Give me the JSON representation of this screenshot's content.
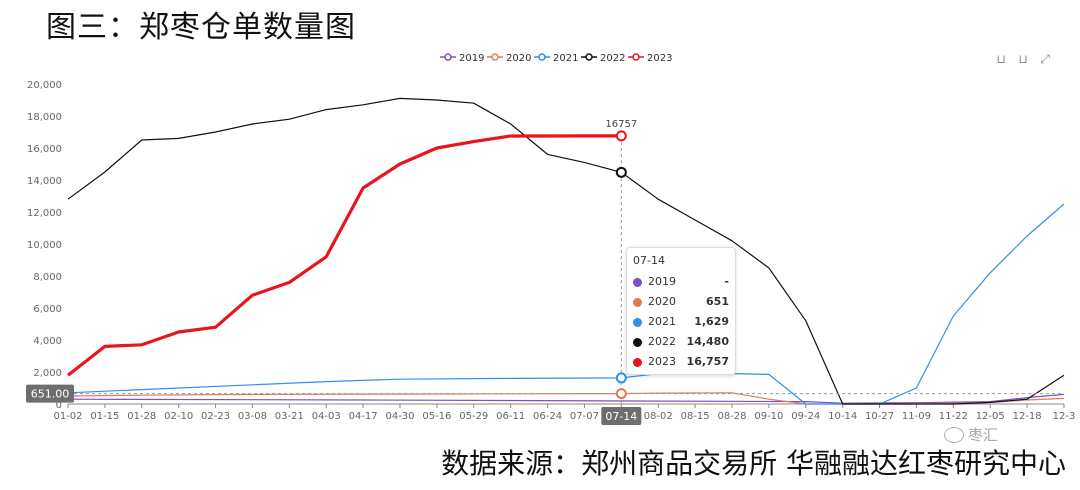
{
  "heading": "图三：郑枣仓单数量图",
  "footer": "数据来源：郑州商品交易所 华融融达红枣研究中心",
  "watermark": "枣汇",
  "toolbox": [
    {
      "name": "zoom-tool",
      "glyph": "⊔"
    },
    {
      "name": "zoom-reset-tool",
      "glyph": "⊔"
    },
    {
      "name": "fullscreen-tool",
      "glyph": "⤢"
    }
  ],
  "tooltip": {
    "title": "07-14",
    "rows": [
      {
        "year": "2019",
        "value": "-",
        "color": "#7f4fc4"
      },
      {
        "year": "2020",
        "value": "651",
        "color": "#e07b54"
      },
      {
        "year": "2021",
        "value": "1,629",
        "color": "#2e90f0"
      },
      {
        "year": "2022",
        "value": "14,480",
        "color": "#111111"
      },
      {
        "year": "2023",
        "value": "16,757",
        "color": "#e8161b"
      }
    ]
  },
  "chart_data": {
    "type": "line",
    "title": "",
    "xlabel": "",
    "ylabel": "",
    "ylim": [
      0,
      20000
    ],
    "yticks": [
      0,
      2000,
      4000,
      6000,
      8000,
      10000,
      12000,
      14000,
      16000,
      18000,
      20000
    ],
    "ytick_labels": [
      "0",
      "2,000",
      "4,000",
      "6,000",
      "8,000",
      "10,000",
      "12,000",
      "14,000",
      "16,000",
      "18,000",
      "20,000"
    ],
    "x_categories": [
      "01-02",
      "01-15",
      "01-28",
      "02-10",
      "02-23",
      "03-08",
      "03-21",
      "04-03",
      "04-17",
      "04-30",
      "05-16",
      "05-29",
      "06-11",
      "06-24",
      "07-07",
      "07-14",
      "08-02",
      "08-15",
      "08-28",
      "09-10",
      "09-24",
      "10-14",
      "10-27",
      "11-09",
      "11-22",
      "12-05",
      "12-18",
      "12-3"
    ],
    "pointer": {
      "x": "07-14",
      "y_label": "651.00",
      "y": 651,
      "peak_label": "16757"
    },
    "legend": {
      "placement": "top-center"
    },
    "grid": false,
    "series": [
      {
        "name": "2019",
        "color": "#7f4fc4",
        "x": [
          "01-02",
          "04-17",
          "09-24",
          "10-14",
          "11-09",
          "12-05",
          "12-18",
          "12-3"
        ],
        "values": [
          300,
          250,
          150,
          50,
          80,
          150,
          400,
          600
        ]
      },
      {
        "name": "2020",
        "color": "#e07b54",
        "x": [
          "01-02",
          "01-28",
          "03-08",
          "04-30",
          "06-11",
          "07-14",
          "08-02",
          "08-28",
          "09-10",
          "09-24",
          "10-14",
          "11-09",
          "12-05",
          "12-18",
          "12-3"
        ],
        "values": [
          500,
          550,
          600,
          620,
          640,
          651,
          680,
          700,
          300,
          0,
          0,
          0,
          100,
          250,
          350
        ]
      },
      {
        "name": "2021",
        "color": "#2e90f0",
        "x": [
          "01-02",
          "01-28",
          "03-08",
          "04-03",
          "04-30",
          "06-11",
          "07-14",
          "08-02",
          "08-28",
          "09-10",
          "09-24",
          "10-14",
          "10-27",
          "11-09",
          "11-22",
          "12-05",
          "12-18",
          "12-3"
        ],
        "values": [
          700,
          900,
          1200,
          1400,
          1550,
          1600,
          1629,
          1900,
          1900,
          1850,
          0,
          0,
          0,
          1000,
          5500,
          8200,
          10500,
          12500
        ]
      },
      {
        "name": "2022",
        "color": "#111111",
        "x": [
          "01-02",
          "01-15",
          "01-28",
          "02-10",
          "02-23",
          "03-08",
          "03-21",
          "04-03",
          "04-17",
          "04-30",
          "05-16",
          "05-29",
          "06-11",
          "06-24",
          "07-07",
          "07-14",
          "08-02",
          "08-15",
          "08-28",
          "09-10",
          "09-24",
          "10-14",
          "10-27",
          "11-09",
          "11-22",
          "12-05",
          "12-18",
          "12-3"
        ],
        "values": [
          12800,
          14500,
          16500,
          16600,
          17000,
          17500,
          17800,
          18400,
          18700,
          19100,
          19000,
          18800,
          17500,
          15600,
          15100,
          14480,
          12800,
          11500,
          10200,
          8500,
          5200,
          0,
          0,
          0,
          0,
          100,
          300,
          1800
        ]
      },
      {
        "name": "2023",
        "color": "#e8161b",
        "x": [
          "01-02",
          "01-15",
          "01-28",
          "02-10",
          "02-23",
          "03-08",
          "03-21",
          "04-03",
          "04-17",
          "04-30",
          "05-16",
          "05-29",
          "06-11",
          "06-24",
          "07-07",
          "07-14"
        ],
        "values": [
          1800,
          3600,
          3700,
          4500,
          4800,
          6800,
          7600,
          9200,
          13500,
          15000,
          16000,
          16400,
          16750,
          16750,
          16757,
          16757
        ]
      }
    ]
  }
}
